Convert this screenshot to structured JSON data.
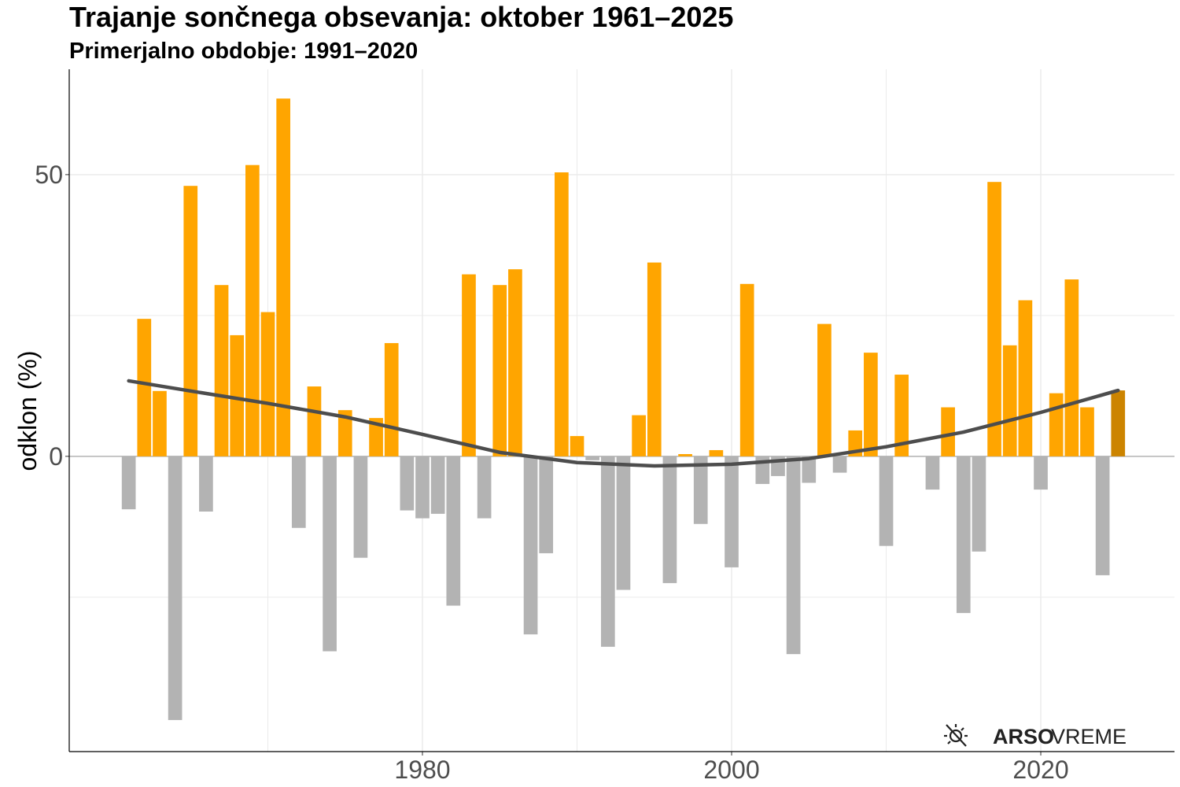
{
  "chart_data": {
    "type": "bar",
    "title": "Trajanje sončnega obsevanja: oktober 1961–2025",
    "subtitle": "Primerjalno obdobje: 1991–2020",
    "y_label": "odklon (%)",
    "watermark": {
      "bold": "ARSO",
      "regular": "VREME"
    },
    "x": [
      1961,
      1962,
      1963,
      1964,
      1965,
      1966,
      1967,
      1968,
      1969,
      1970,
      1971,
      1972,
      1973,
      1974,
      1975,
      1976,
      1977,
      1978,
      1979,
      1980,
      1981,
      1982,
      1983,
      1984,
      1985,
      1986,
      1987,
      1988,
      1989,
      1990,
      1991,
      1992,
      1993,
      1994,
      1995,
      1996,
      1997,
      1998,
      1999,
      2000,
      2001,
      2002,
      2003,
      2004,
      2005,
      2006,
      2007,
      2008,
      2009,
      2010,
      2011,
      2012,
      2013,
      2014,
      2015,
      2016,
      2017,
      2018,
      2019,
      2020,
      2021,
      2022,
      2023,
      2024,
      2025
    ],
    "values": [
      -9.4,
      24.4,
      11.6,
      -46.8,
      48.0,
      -9.8,
      30.4,
      21.5,
      51.7,
      25.6,
      63.5,
      -12.7,
      12.4,
      -34.6,
      8.2,
      -18.0,
      6.8,
      20.1,
      -9.6,
      -11.0,
      -10.2,
      -26.5,
      32.3,
      -11.0,
      30.4,
      33.2,
      -31.6,
      -17.2,
      50.4,
      3.6,
      -0.7,
      -33.8,
      -23.7,
      7.3,
      34.4,
      -22.5,
      0.4,
      -12.0,
      1.1,
      -19.7,
      30.6,
      -4.9,
      -3.5,
      -35.1,
      -4.7,
      23.5,
      -2.9,
      4.6,
      18.4,
      -15.9,
      14.5,
      -0.1,
      -5.9,
      8.7,
      -27.8,
      -16.9,
      48.7,
      19.7,
      27.7,
      -5.9,
      11.2,
      31.4,
      8.7,
      -21.1,
      11.7
    ],
    "colors": [
      "#b3b3b3",
      "#ffa500",
      "#ffa500",
      "#b3b3b3",
      "#ffa500",
      "#b3b3b3",
      "#ffa500",
      "#ffa500",
      "#ffa500",
      "#ffa500",
      "#ffa500",
      "#b3b3b3",
      "#ffa500",
      "#b3b3b3",
      "#ffa500",
      "#b3b3b3",
      "#ffa500",
      "#ffa500",
      "#b3b3b3",
      "#b3b3b3",
      "#b3b3b3",
      "#b3b3b3",
      "#ffa500",
      "#b3b3b3",
      "#ffa500",
      "#ffa500",
      "#b3b3b3",
      "#b3b3b3",
      "#ffa500",
      "#ffa500",
      "#b3b3b3",
      "#b3b3b3",
      "#b3b3b3",
      "#ffa500",
      "#ffa500",
      "#b3b3b3",
      "#ffa500",
      "#b3b3b3",
      "#ffa500",
      "#b3b3b3",
      "#ffa500",
      "#b3b3b3",
      "#b3b3b3",
      "#b3b3b3",
      "#b3b3b3",
      "#ffa500",
      "#b3b3b3",
      "#ffa500",
      "#ffa500",
      "#b3b3b3",
      "#ffa500",
      "#b3b3b3",
      "#b3b3b3",
      "#ffa500",
      "#b3b3b3",
      "#b3b3b3",
      "#ffa500",
      "#ffa500",
      "#ffa500",
      "#b3b3b3",
      "#ffa500",
      "#ffa500",
      "#ffa500",
      "#b3b3b3",
      "#cc8400"
    ],
    "trend": {
      "color": "#4d4d4d",
      "x": [
        1961,
        1965,
        1970,
        1975,
        1980,
        1985,
        1990,
        1995,
        2000,
        2005,
        2010,
        2015,
        2020,
        2025
      ],
      "values": [
        13.4,
        11.6,
        9.4,
        7.0,
        3.9,
        0.7,
        -1.1,
        -1.7,
        -1.4,
        -0.4,
        1.7,
        4.3,
        7.8,
        11.7
      ]
    },
    "xlim": [
      1957.15,
      2028.65
    ],
    "xticks": [
      1980,
      2000,
      2020
    ],
    "xgrid_minor": [
      1970,
      1990,
      2010
    ],
    "ylim": [
      -52.4,
      68.7
    ],
    "yticks": [
      0,
      50
    ],
    "ygrid_minor": [
      -25,
      25
    ],
    "grid": true
  }
}
